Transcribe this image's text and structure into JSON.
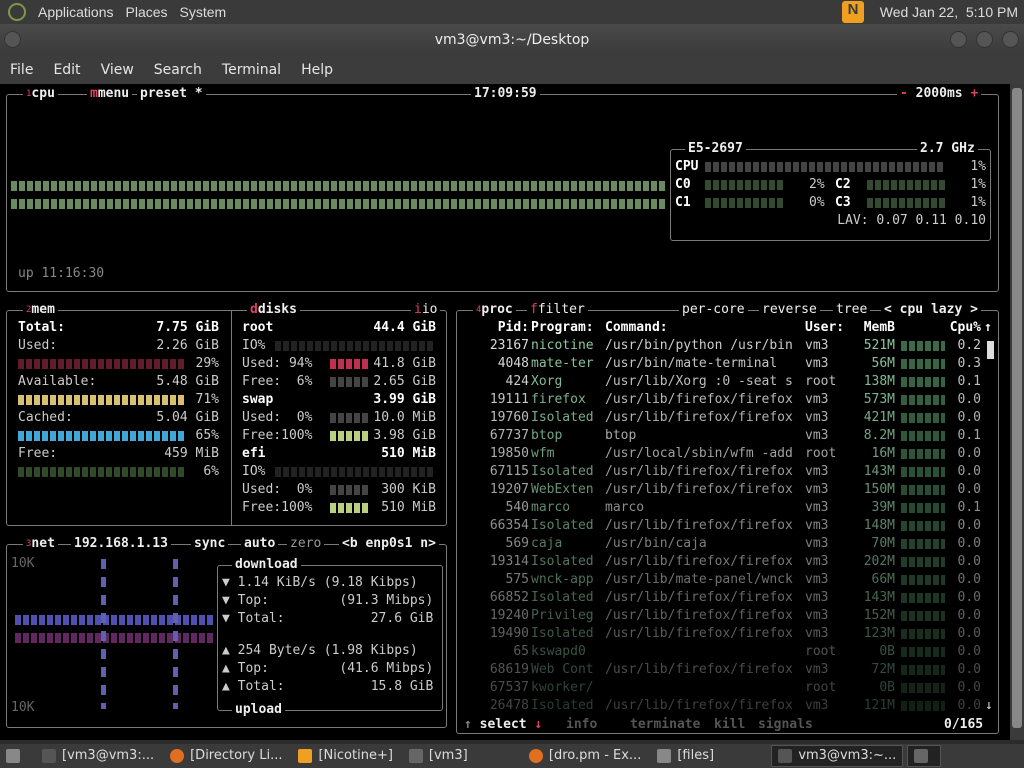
{
  "panel": {
    "menus": [
      "Applications",
      "Places",
      "System"
    ],
    "clock": "Wed Jan 22,  5:10 PM"
  },
  "window": {
    "title": "vm3@vm3:~/Desktop",
    "menu": [
      "File",
      "Edit",
      "View",
      "Search",
      "Terminal",
      "Help"
    ]
  },
  "cpu": {
    "tab": "cpu",
    "menu": "menu",
    "preset": "preset *",
    "time": "17:09:59",
    "interval": "2000ms",
    "uptime": "up 11:16:30",
    "model": "E5-2697",
    "freq": "2.7 GHz",
    "total_label": "CPU",
    "total_pct": "1%",
    "cores": [
      {
        "name": "C0",
        "pct": "2%"
      },
      {
        "name": "C1",
        "pct": "0%"
      },
      {
        "name": "C2",
        "pct": "1%"
      },
      {
        "name": "C3",
        "pct": "1%"
      }
    ],
    "lav": "LAV: 0.07 0.11 0.10",
    "colors": {
      "graph": "#6a8a60"
    }
  },
  "mem": {
    "tab": "mem",
    "total": [
      "Total:",
      "7.75 GiB"
    ],
    "used": [
      "Used:",
      "2.26 GiB",
      "29%"
    ],
    "available": [
      "Available:",
      "5.48 GiB",
      "71%"
    ],
    "cached": [
      "Cached:",
      "5.04 GiB",
      "65%"
    ],
    "free": [
      "Free:",
      "459 MiB",
      "6%"
    ],
    "colors": {
      "used": "#a03048",
      "available": "#d8c070",
      "cached": "#40a8d8",
      "free": "#304a28"
    }
  },
  "disks": {
    "tab": "disks",
    "io": "io",
    "root": {
      "name": "root",
      "size": "44.4 GiB",
      "io": "IO%",
      "used": "Used: 94%",
      "used_val": "41.8 GiB",
      "free": "Free:  6%",
      "free_val": "2.65 GiB"
    },
    "swap": {
      "name": "swap",
      "size": "3.99 GiB",
      "used": "Used:  0%",
      "used_val": "10.0 MiB",
      "free": "Free:100%",
      "free_val": "3.98 GiB"
    },
    "efi": {
      "name": "efi",
      "size": "510 MiB",
      "io": "IO%",
      "used": "Used:  0%",
      "used_val": "300 KiB",
      "free": "Free:100%",
      "free_val": "510 MiB"
    }
  },
  "net": {
    "tab": "net",
    "ip": "192.168.1.13",
    "sync": "sync",
    "auto": "auto",
    "zero": "zero",
    "iface": "<b enp0s1 n>",
    "scale_top": "10K",
    "scale_bottom": "10K",
    "download": {
      "title": "download",
      "rate": "1.14 KiB/s (9.18 Kibps)",
      "top": "Top:         (91.3 Mibps)",
      "total": "Total:           27.6 GiB"
    },
    "upload": {
      "title": "upload",
      "rate": "254 Byte/s (1.98 Kibps)",
      "top": "Top:         (41.6 Mibps)",
      "total": "Total:           15.8 GiB"
    }
  },
  "proc": {
    "tab": "proc",
    "filter": "filter",
    "per_core": "per-core",
    "reverse": "reverse",
    "tree": "tree",
    "sort": "< cpu lazy >",
    "headers": {
      "pid": "Pid:",
      "program": "Program:",
      "command": "Command:",
      "user": "User:",
      "mem": "MemB",
      "cpu": "Cpu%"
    },
    "rows": [
      [
        "23167",
        "nicotine",
        "/usr/bin/python /usr/bin",
        "vm3",
        "521M",
        "0.2"
      ],
      [
        "4048",
        "mate-ter",
        "/usr/bin/mate-terminal",
        "vm3",
        "56M",
        "0.3"
      ],
      [
        "424",
        "Xorg",
        "/usr/lib/Xorg :0 -seat s",
        "root",
        "138M",
        "0.1"
      ],
      [
        "19111",
        "firefox",
        "/usr/lib/firefox/firefox",
        "vm3",
        "573M",
        "0.0"
      ],
      [
        "19760",
        "Isolated",
        "/usr/lib/firefox/firefox",
        "vm3",
        "421M",
        "0.0"
      ],
      [
        "67737",
        "btop",
        "btop",
        "vm3",
        "8.2M",
        "0.1"
      ],
      [
        "19850",
        "wfm",
        "/usr/local/sbin/wfm -add",
        "root",
        "16M",
        "0.0"
      ],
      [
        "67115",
        "Isolated",
        "/usr/lib/firefox/firefox",
        "vm3",
        "143M",
        "0.0"
      ],
      [
        "19207",
        "WebExten",
        "/usr/lib/firefox/firefox",
        "vm3",
        "150M",
        "0.0"
      ],
      [
        "540",
        "marco",
        "marco",
        "vm3",
        "39M",
        "0.1"
      ],
      [
        "66354",
        "Isolated",
        "/usr/lib/firefox/firefox",
        "vm3",
        "148M",
        "0.0"
      ],
      [
        "569",
        "caja",
        "/usr/bin/caja",
        "vm3",
        "70M",
        "0.0"
      ],
      [
        "19314",
        "Isolated",
        "/usr/lib/firefox/firefox",
        "vm3",
        "202M",
        "0.0"
      ],
      [
        "575",
        "wnck-app",
        "/usr/lib/mate-panel/wnck",
        "vm3",
        "66M",
        "0.0"
      ],
      [
        "66852",
        "Isolated",
        "/usr/lib/firefox/firefox",
        "vm3",
        "143M",
        "0.0"
      ],
      [
        "19240",
        "Privileg",
        "/usr/lib/firefox/firefox",
        "vm3",
        "152M",
        "0.0"
      ],
      [
        "19490",
        "Isolated",
        "/usr/lib/firefox/firefox",
        "vm3",
        "123M",
        "0.0"
      ],
      [
        "65",
        "kswapd0",
        "",
        "root",
        "0B",
        "0.0"
      ],
      [
        "68619",
        "Web Cont",
        "/usr/lib/firefox/firefox",
        "vm3",
        "72M",
        "0.0"
      ],
      [
        "67537",
        "kworker/",
        "",
        "root",
        "0B",
        "0.0"
      ],
      [
        "26478",
        "Isolated",
        "/usr/lib/firefox/firefox",
        "vm3",
        "121M",
        "0.0"
      ]
    ],
    "footer": {
      "select": "select",
      "info": "info",
      "terminate": "terminate",
      "kill": "kill",
      "signals": "signals",
      "count": "0/165"
    }
  },
  "taskbar": [
    "[vm3@vm3:...",
    "[Directory Li...",
    "[Nicotine+]",
    "[vm3]",
    "[dro.pm - Ex...",
    "[files]",
    "vm3@vm3:~..."
  ]
}
